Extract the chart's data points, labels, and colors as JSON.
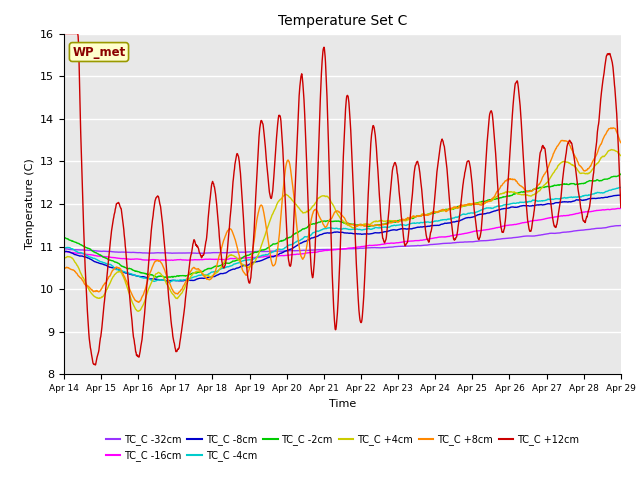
{
  "title": "Temperature Set C",
  "xlabel": "Time",
  "ylabel": "Temperature (C)",
  "ylim": [
    8.0,
    16.0
  ],
  "yticks": [
    8.0,
    9.0,
    10.0,
    11.0,
    12.0,
    13.0,
    14.0,
    15.0,
    16.0
  ],
  "bg_color": "#e8e8e8",
  "fig_color": "#ffffff",
  "annotation_text": "WP_met",
  "annotation_bg": "#ffffcc",
  "annotation_border": "#999900",
  "annotation_text_color": "#8b0000",
  "series": [
    {
      "label": "TC_C -32cm",
      "color": "#9933ff"
    },
    {
      "label": "TC_C -16cm",
      "color": "#ff00ff"
    },
    {
      "label": "TC_C -8cm",
      "color": "#0000cc"
    },
    {
      "label": "TC_C -4cm",
      "color": "#00cccc"
    },
    {
      "label": "TC_C -2cm",
      "color": "#00cc00"
    },
    {
      "label": "TC_C +4cm",
      "color": "#cccc00"
    },
    {
      "label": "TC_C +8cm",
      "color": "#ff8800"
    },
    {
      "label": "TC_C +12cm",
      "color": "#cc0000"
    }
  ],
  "xtick_labels": [
    "Apr 14",
    "Apr 15",
    "Apr 16",
    "Apr 17",
    "Apr 18",
    "Apr 19",
    "Apr 20",
    "Apr 21",
    "Apr 22",
    "Apr 23",
    "Apr 24",
    "Apr 25",
    "Apr 26",
    "Apr 27",
    "Apr 28",
    "Apr 29"
  ]
}
